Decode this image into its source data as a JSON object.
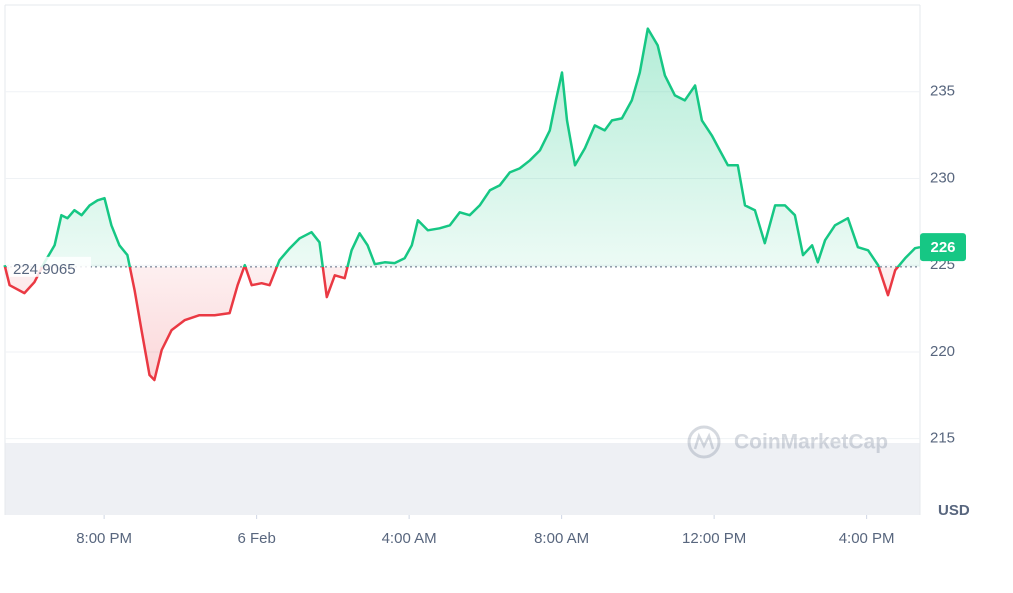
{
  "chart_data": {
    "type": "line",
    "baseline": 224.9065,
    "current_price_label": "226",
    "watermark": "CoinMarketCap",
    "y_unit": "USD",
    "up_color": "#16c784",
    "down_color": "#ea3943",
    "x": [
      -6.61,
      -6.48,
      -6.09,
      -5.83,
      -5.56,
      -5.3,
      -5.12,
      -4.96,
      -4.78,
      -4.59,
      -4.38,
      -4.17,
      -3.99,
      -3.81,
      -3.6,
      -3.39,
      -3.2,
      -3.02,
      -2.81,
      -2.68,
      -2.49,
      -2.23,
      -1.89,
      -1.5,
      -1.1,
      -0.71,
      -0.5,
      -0.31,
      -0.13,
      0.13,
      0.34,
      0.6,
      0.87,
      1.13,
      1.44,
      1.65,
      1.84,
      2.05,
      2.31,
      2.49,
      2.7,
      2.91,
      3.1,
      3.36,
      3.62,
      3.88,
      4.07,
      4.23,
      4.49,
      4.8,
      5.07,
      5.33,
      5.59,
      5.85,
      6.12,
      6.38,
      6.64,
      6.9,
      7.17,
      7.43,
      7.69,
      7.85,
      8.01,
      8.14,
      8.35,
      8.61,
      8.87,
      9.13,
      9.32,
      9.58,
      9.84,
      10.05,
      10.26,
      10.52,
      10.71,
      10.97,
      11.23,
      11.5,
      11.68,
      11.94,
      12.15,
      12.36,
      12.62,
      12.81,
      13.07,
      13.33,
      13.6,
      13.86,
      14.12,
      14.33,
      14.57,
      14.72,
      14.91,
      15.17,
      15.51,
      15.77,
      16.04,
      16.3,
      16.56,
      16.75,
      17.01,
      17.27,
      17.4
    ],
    "values": [
      225.0,
      223.85,
      223.39,
      224.02,
      225.17,
      226.15,
      227.88,
      227.71,
      228.17,
      227.88,
      228.45,
      228.74,
      228.86,
      227.3,
      226.15,
      225.58,
      223.56,
      221.26,
      218.67,
      218.38,
      220.11,
      221.26,
      221.83,
      222.12,
      222.12,
      222.24,
      223.85,
      225.0,
      223.85,
      223.96,
      223.85,
      225.29,
      225.98,
      226.55,
      226.9,
      226.32,
      223.16,
      224.42,
      224.25,
      225.86,
      226.84,
      226.15,
      225.06,
      225.17,
      225.12,
      225.4,
      226.15,
      227.59,
      227.01,
      227.13,
      227.3,
      228.05,
      227.88,
      228.45,
      229.32,
      229.61,
      230.35,
      230.58,
      231.05,
      231.62,
      232.77,
      234.5,
      236.11,
      233.35,
      230.76,
      231.74,
      233.06,
      232.77,
      233.35,
      233.46,
      234.5,
      236.11,
      238.64,
      237.67,
      235.94,
      234.79,
      234.5,
      235.36,
      233.35,
      232.48,
      231.62,
      230.76,
      230.76,
      228.45,
      228.17,
      226.27,
      228.45,
      228.45,
      227.88,
      225.58,
      226.15,
      225.17,
      226.44,
      227.3,
      227.71,
      226.04,
      225.86,
      225.0,
      223.27,
      224.71,
      225.4,
      225.98,
      226.04
    ],
    "xlim": [
      -6.6,
      17.4
    ],
    "xticks": [
      {
        "value": -4,
        "label": "8:00 PM"
      },
      {
        "value": 0,
        "label": "6 Feb"
      },
      {
        "value": 4,
        "label": "4:00 AM"
      },
      {
        "value": 8,
        "label": "8:00 AM"
      },
      {
        "value": 12,
        "label": "12:00 PM"
      },
      {
        "value": 16,
        "label": "4:00 PM"
      }
    ],
    "ylim": [
      210.6,
      240
    ],
    "yticks": [
      215,
      220,
      225,
      230,
      235
    ],
    "grid": true
  }
}
